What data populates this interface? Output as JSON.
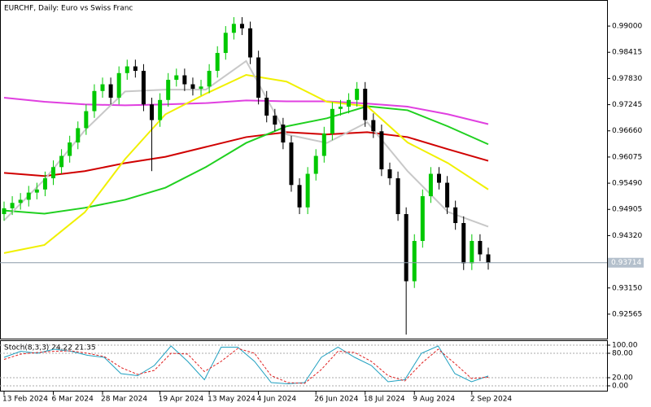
{
  "chart_data": [
    {
      "type": "candlestick",
      "title": "EURCHF, Daily:  Euro vs Swiss Franc",
      "categories": [
        "13 Feb 2024",
        null,
        null,
        null,
        null,
        null,
        "6 Mar 2024",
        null,
        null,
        null,
        null,
        null,
        "28 Mar 2024",
        null,
        null,
        null,
        null,
        null,
        null,
        "19 Apr 2024",
        null,
        null,
        null,
        null,
        null,
        "13 May 2024",
        null,
        null,
        null,
        null,
        null,
        "4 Jun 2024",
        null,
        null,
        null,
        null,
        null,
        null,
        "26 Jun 2024",
        null,
        null,
        null,
        null,
        null,
        "18 Jul 2024",
        null,
        null,
        null,
        null,
        null,
        "9 Aug 2024",
        null,
        null,
        null,
        null,
        null,
        null,
        "2 Sep 2024",
        null,
        null
      ],
      "open": [
        0.948,
        0.9493,
        0.9505,
        0.9512,
        0.9528,
        0.9535,
        0.956,
        0.9585,
        0.961,
        0.964,
        0.9672,
        0.971,
        0.9755,
        0.977,
        0.974,
        0.9795,
        0.981,
        0.98,
        0.9725,
        0.969,
        0.9735,
        0.978,
        0.979,
        0.977,
        0.976,
        0.9765,
        0.98,
        0.984,
        0.9885,
        0.9905,
        0.9895,
        0.983,
        0.974,
        0.97,
        0.968,
        0.964,
        0.9545,
        0.9495,
        0.957,
        0.961,
        0.966,
        0.9715,
        0.972,
        0.9735,
        0.976,
        0.969,
        0.9665,
        0.958,
        0.956,
        0.948,
        0.933,
        0.942,
        0.952,
        0.957,
        0.955,
        0.9495,
        0.946,
        0.937,
        0.942,
        0.939
      ],
      "high": [
        0.9508,
        0.952,
        0.9527,
        0.9543,
        0.955,
        0.9575,
        0.96,
        0.9625,
        0.9655,
        0.9687,
        0.9725,
        0.977,
        0.9785,
        0.9785,
        0.981,
        0.9825,
        0.9825,
        0.9815,
        0.974,
        0.975,
        0.9795,
        0.9805,
        0.9805,
        0.9785,
        0.978,
        0.9815,
        0.9855,
        0.99,
        0.992,
        0.992,
        0.991,
        0.9845,
        0.9755,
        0.9715,
        0.9695,
        0.9655,
        0.956,
        0.9585,
        0.9625,
        0.9675,
        0.973,
        0.9735,
        0.975,
        0.9775,
        0.9775,
        0.9705,
        0.968,
        0.9595,
        0.9575,
        0.9495,
        0.9435,
        0.9535,
        0.9585,
        0.9585,
        0.9565,
        0.951,
        0.9475,
        0.9435,
        0.9435,
        0.9405
      ],
      "low": [
        0.9465,
        0.9478,
        0.949,
        0.9497,
        0.9513,
        0.952,
        0.9545,
        0.957,
        0.9595,
        0.9625,
        0.9657,
        0.9695,
        0.974,
        0.9725,
        0.9725,
        0.978,
        0.9785,
        0.971,
        0.9576,
        0.9675,
        0.972,
        0.9765,
        0.9755,
        0.9745,
        0.9745,
        0.975,
        0.9785,
        0.9825,
        0.987,
        0.988,
        0.9815,
        0.9725,
        0.9685,
        0.9665,
        0.9625,
        0.953,
        0.948,
        0.948,
        0.9555,
        0.9595,
        0.9645,
        0.97,
        0.9705,
        0.972,
        0.9675,
        0.965,
        0.9565,
        0.9545,
        0.9465,
        0.9211,
        0.9315,
        0.9405,
        0.9505,
        0.9535,
        0.948,
        0.9445,
        0.9355,
        0.9355,
        0.9375,
        0.9356
      ],
      "close": [
        0.9493,
        0.9505,
        0.9512,
        0.9528,
        0.9535,
        0.956,
        0.9585,
        0.961,
        0.964,
        0.9672,
        0.971,
        0.9755,
        0.977,
        0.974,
        0.9795,
        0.981,
        0.98,
        0.9725,
        0.969,
        0.9735,
        0.978,
        0.979,
        0.977,
        0.976,
        0.9765,
        0.98,
        0.984,
        0.9885,
        0.9905,
        0.9895,
        0.983,
        0.974,
        0.97,
        0.968,
        0.964,
        0.9545,
        0.9495,
        0.957,
        0.961,
        0.966,
        0.9715,
        0.972,
        0.9735,
        0.976,
        0.969,
        0.9665,
        0.958,
        0.956,
        0.948,
        0.933,
        0.942,
        0.952,
        0.957,
        0.955,
        0.9495,
        0.946,
        0.937,
        0.942,
        0.939,
        0.9371
      ],
      "up_color": "#00c800",
      "down_color": "#000000",
      "ylim": [
        0.92018,
        0.99583
      ],
      "yticks": [
        {
          "value": 0.99,
          "label": "0.99000"
        },
        {
          "value": 0.98415,
          "label": "0.98415"
        },
        {
          "value": 0.9783,
          "label": "0.97830"
        },
        {
          "value": 0.97245,
          "label": "0.97245"
        },
        {
          "value": 0.9666,
          "label": "0.96660"
        },
        {
          "value": 0.96075,
          "label": "0.96075"
        },
        {
          "value": 0.9549,
          "label": "0.95490"
        },
        {
          "value": 0.94905,
          "label": "0.94905"
        },
        {
          "value": 0.9432,
          "label": "0.94320"
        },
        {
          "value": 0.9315,
          "label": "0.93150"
        },
        {
          "value": 0.92565,
          "label": "0.92565"
        }
      ],
      "current_price": {
        "value": 0.93714,
        "label": "0.93714"
      },
      "overlays": [
        {
          "color": "#e040e0",
          "values": [
            0.974,
            0.9731,
            0.9725,
            0.9723,
            0.9725,
            0.9728,
            0.9734,
            0.9732,
            0.9732,
            0.9727,
            0.972,
            0.9703,
            0.9681
          ]
        },
        {
          "color": "#d00000",
          "values": [
            0.9572,
            0.9565,
            0.9576,
            0.9594,
            0.9608,
            0.963,
            0.9652,
            0.9663,
            0.9658,
            0.9663,
            0.9652,
            0.9625,
            0.9599
          ]
        },
        {
          "color": "#20d020",
          "values": [
            0.9488,
            0.9481,
            0.9494,
            0.9512,
            0.9539,
            0.9585,
            0.9639,
            0.9676,
            0.9694,
            0.9721,
            0.9712,
            0.9676,
            0.9636
          ]
        },
        {
          "color": "#f0f000",
          "values": [
            0.9393,
            0.9411,
            0.9484,
            0.9603,
            0.9703,
            0.9749,
            0.9791,
            0.9776,
            0.9731,
            0.9721,
            0.964,
            0.9594,
            0.9535
          ]
        },
        {
          "color": "#c8c8c8",
          "values": [
            0.9466,
            0.9557,
            0.9667,
            0.9754,
            0.9758,
            0.9758,
            0.9822,
            0.9658,
            0.9639,
            0.9685,
            0.9576,
            0.9485,
            0.9452
          ]
        }
      ]
    },
    {
      "type": "line",
      "title": "Stoch(8,3,3) 24.22 21.35",
      "ylim": [
        0,
        100
      ],
      "yticks": [
        {
          "value": 100,
          "label": "100.00"
        },
        {
          "value": 80,
          "label": "80.00"
        },
        {
          "value": 20,
          "label": "20.00"
        },
        {
          "value": 0,
          "label": "0.00"
        }
      ],
      "series": [
        {
          "color": "#20a0c0",
          "dashed": false,
          "values": [
            70,
            85,
            80,
            90,
            85,
            75,
            70,
            30,
            25,
            50,
            98,
            60,
            15,
            95,
            95,
            60,
            8,
            5,
            8,
            70,
            95,
            70,
            50,
            10,
            15,
            80,
            98,
            30,
            10,
            24.22
          ]
        },
        {
          "color": "#e02020",
          "dashed": true,
          "values": [
            65,
            78,
            82,
            85,
            86,
            80,
            72,
            45,
            28,
            38,
            80,
            78,
            35,
            60,
            92,
            80,
            25,
            8,
            6,
            40,
            85,
            82,
            60,
            25,
            12,
            55,
            90,
            55,
            18,
            21.35
          ]
        }
      ]
    }
  ]
}
